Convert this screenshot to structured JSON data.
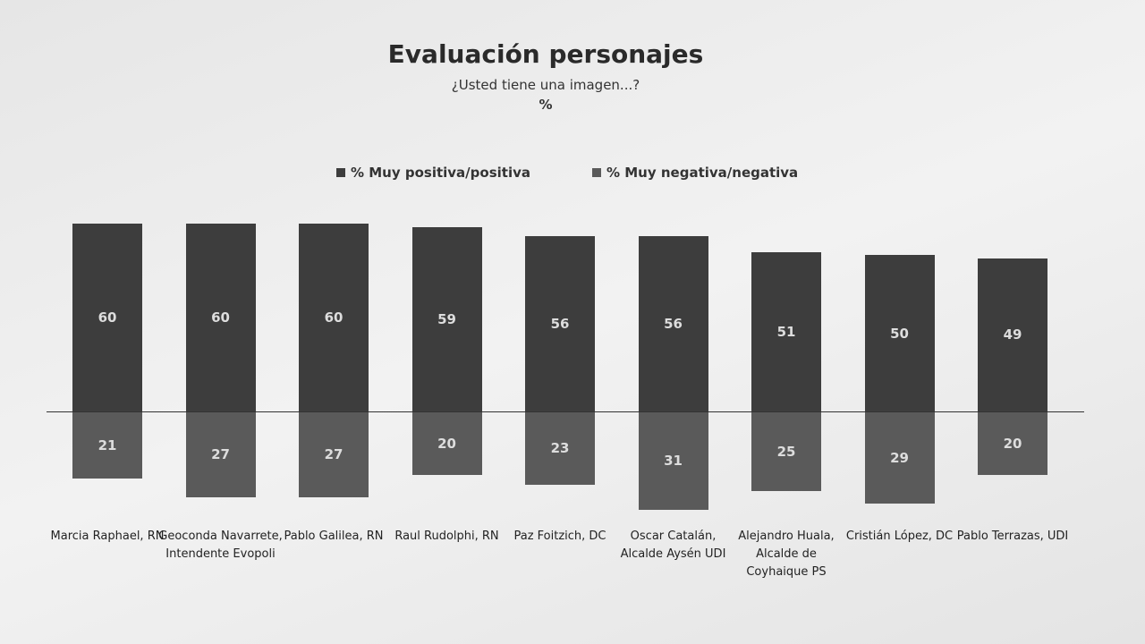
{
  "chart_data": {
    "type": "diverging_bar",
    "title": "Evaluación personajes",
    "subtitle": "¿Usted tiene una imagen...?",
    "unit": "%",
    "categories": [
      "Marcia Raphael, RN",
      "Geoconda Navarrete, Intendente Evopoli",
      "Pablo Galilea, RN",
      "Raul Rudolphi, RN",
      "Paz Foitzich, DC",
      "Oscar Catalán, Alcalde Aysén UDI",
      "Alejandro Huala, Alcalde de Coyhaique PS",
      "Cristián López, DC",
      "Pablo Terrazas, UDI"
    ],
    "series": [
      {
        "name": "% Muy positiva/positiva",
        "color": "#3d3d3d",
        "values": [
          60,
          60,
          60,
          59,
          56,
          56,
          51,
          50,
          49
        ]
      },
      {
        "name": "% Muy negativa/negativa",
        "color": "#5a5a5a",
        "values": [
          21,
          27,
          27,
          20,
          23,
          31,
          25,
          29,
          20
        ]
      }
    ]
  }
}
